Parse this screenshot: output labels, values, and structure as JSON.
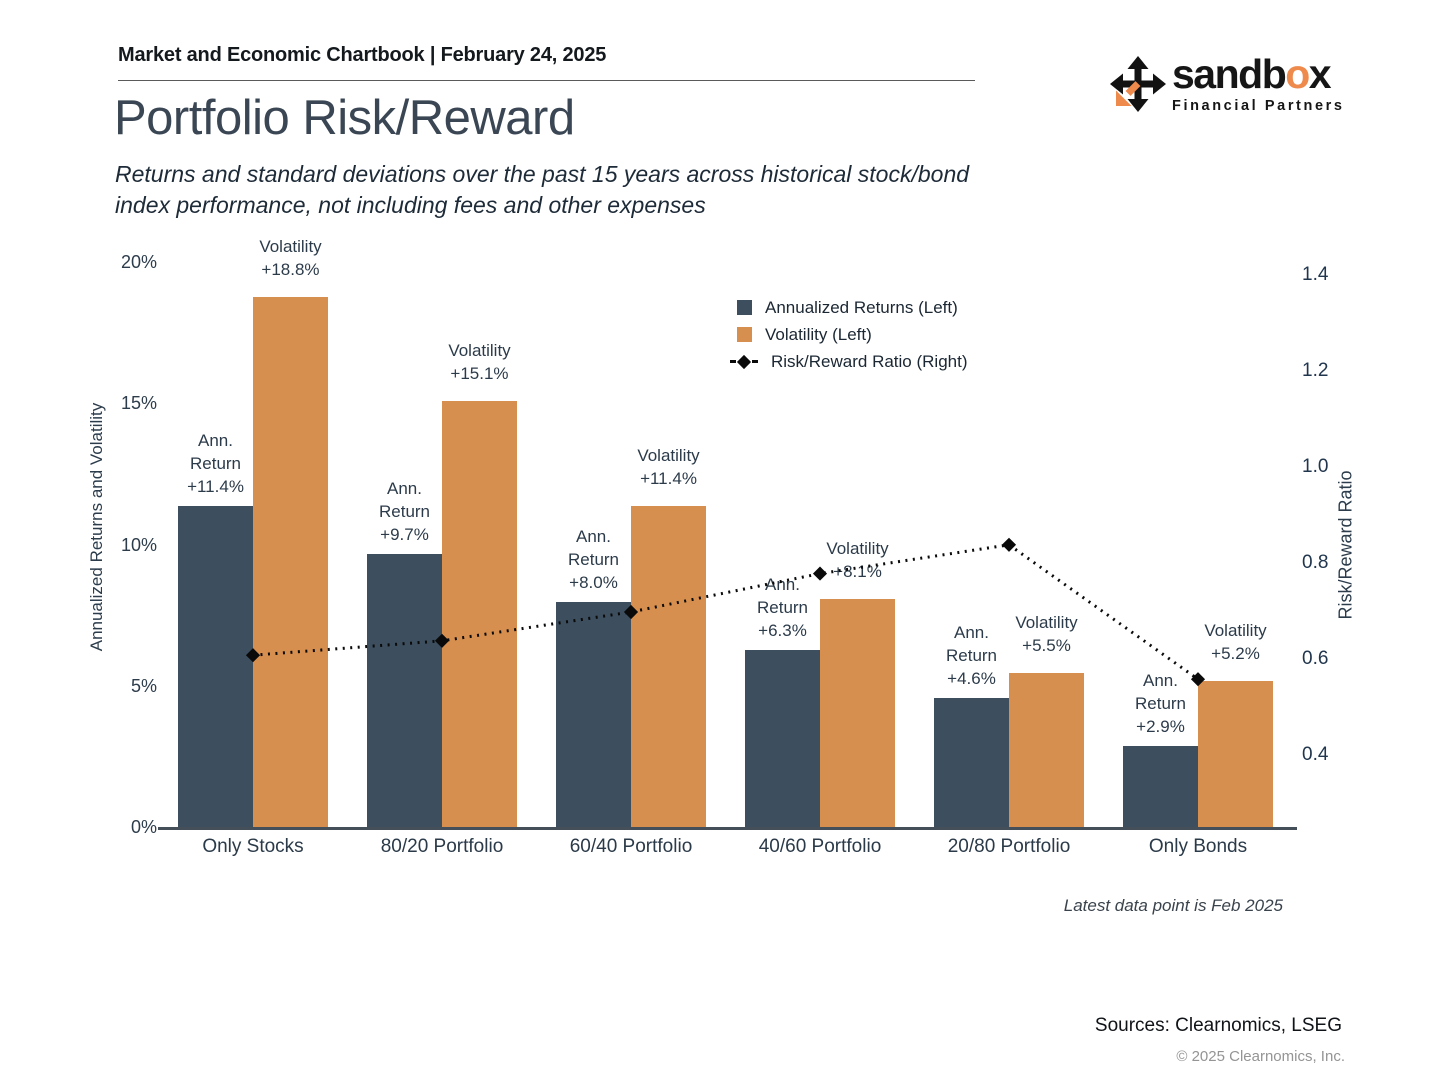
{
  "header": {
    "chartbook_line": "Market and Economic Chartbook | February 24, 2025"
  },
  "logo": {
    "name_part1": "sandb",
    "name_o": "o",
    "name_part2": "x",
    "tagline": "Financial Partners",
    "accent_color": "#ef8a4d",
    "icon": "four-way-move-arrow-with-orange-diagonal-arrow"
  },
  "title": "Portfolio Risk/Reward",
  "subtitle_line1": "Returns and standard deviations over the past 15 years across historical stock/bond",
  "subtitle_line2": "index performance, not including fees and other expenses",
  "chart_data": {
    "type": "bar",
    "categories": [
      "Only Stocks",
      "80/20 Portfolio",
      "60/40 Portfolio",
      "40/60 Portfolio",
      "20/80 Portfolio",
      "Only Bonds"
    ],
    "series": [
      {
        "name": "Annualized Returns (Left)",
        "type": "bar",
        "axis": "left",
        "color": "#3d4e5e",
        "values": [
          11.4,
          9.7,
          8.0,
          6.3,
          4.6,
          2.9
        ],
        "label_lines": [
          [
            "Ann.",
            "Return",
            "+11.4%"
          ],
          [
            "Ann.",
            "Return",
            "+9.7%"
          ],
          [
            "Ann.",
            "Return",
            "+8.0%"
          ],
          [
            "Ann.",
            "Return",
            "+6.3%"
          ],
          [
            "Ann.",
            "Return",
            "+4.6%"
          ],
          [
            "Ann.",
            "Return",
            "+2.9%"
          ]
        ]
      },
      {
        "name": "Volatility (Left)",
        "type": "bar",
        "axis": "left",
        "color": "#d78f4f",
        "values": [
          18.8,
          15.1,
          11.4,
          8.1,
          5.5,
          5.2
        ],
        "label_lines": [
          [
            "Volatility",
            "+18.8%"
          ],
          [
            "Volatility",
            "+15.1%"
          ],
          [
            "Volatility",
            "+11.4%"
          ],
          [
            "Volatility",
            "+8.1%"
          ],
          [
            "Volatility",
            "+5.5%"
          ],
          [
            "Volatility",
            "+5.2%"
          ]
        ]
      },
      {
        "name": "Risk/Reward Ratio (Right)",
        "type": "line",
        "axis": "right",
        "color": "#0a0a0a",
        "line_style": "dotted",
        "marker": "diamond",
        "values": [
          0.61,
          0.64,
          0.7,
          0.78,
          0.84,
          0.56
        ]
      }
    ],
    "left_axis": {
      "title": "Annualized Returns and Volatility",
      "ticks": [
        "0%",
        "5%",
        "10%",
        "15%",
        "20%"
      ],
      "min": 0,
      "max": 20
    },
    "right_axis": {
      "title": "Risk/Reward Ratio",
      "ticks": [
        "0.4",
        "0.6",
        "0.8",
        "1.0",
        "1.2",
        "1.4"
      ],
      "min": 0.4,
      "max": 1.4
    },
    "legend_position": "upper-right-inside",
    "grid": false
  },
  "annotations": {
    "latest_note": "Latest data point is Feb 2025"
  },
  "footer": {
    "sources": "Sources: Clearnomics, LSEG",
    "copyright": "© 2025 Clearnomics, Inc."
  }
}
